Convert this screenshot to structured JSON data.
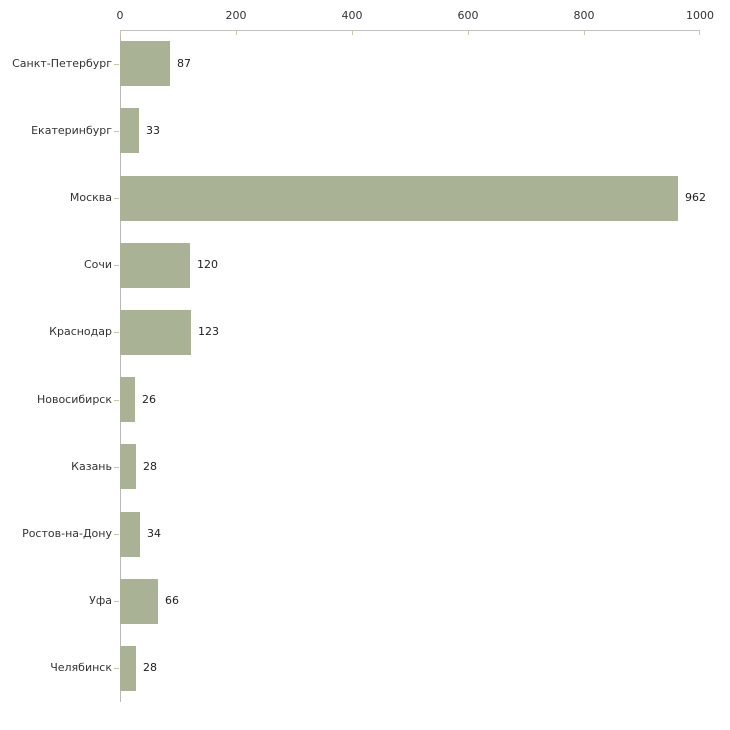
{
  "chart_data": {
    "type": "bar",
    "orientation": "horizontal",
    "title": "",
    "xlabel": "",
    "ylabel": "",
    "categories": [
      "Санкт-Петербург",
      "Екатеринбург",
      "Москва",
      "Сочи",
      "Краснодар",
      "Новосибирск",
      "Казань",
      "Ростов-на-Дону",
      "Уфа",
      "Челябинск"
    ],
    "values": [
      87,
      33,
      962,
      120,
      123,
      26,
      28,
      34,
      66,
      28
    ],
    "data_labels": [
      "87",
      "33",
      "962",
      "120",
      "123",
      "26",
      "28",
      "34",
      "66",
      "28"
    ],
    "xlim": [
      0,
      1000
    ],
    "x_ticks": [
      0,
      200,
      400,
      600,
      800,
      1000
    ],
    "x_tick_labels": [
      "0",
      "200",
      "400",
      "600",
      "800",
      "1000"
    ],
    "grid": false,
    "legend": "none",
    "axis_position": "top",
    "colors": {
      "bar_fill": "#a9b294",
      "tick_mark": "#c6caa2",
      "axis_line": "#bdbdbd",
      "text": "#333333",
      "background": "#ffffff"
    }
  }
}
